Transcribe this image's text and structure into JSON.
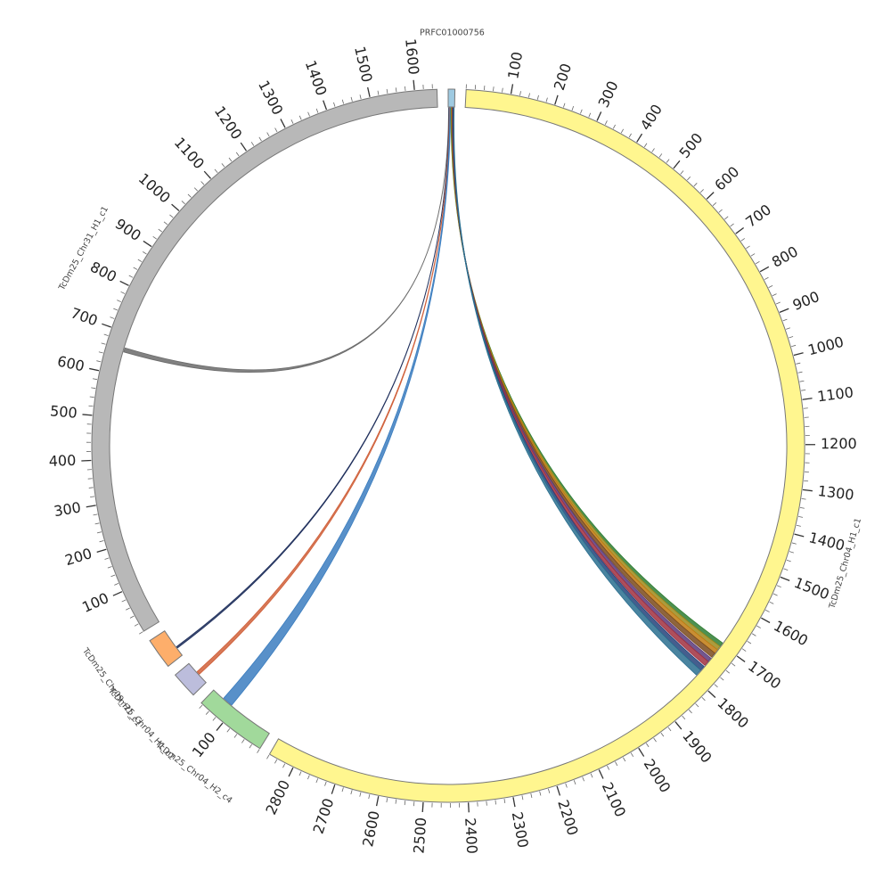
{
  "chart_data": {
    "type": "chord",
    "segments": [
      {
        "name": "PRFC01000756",
        "length": 15,
        "color": "#9ecae1",
        "ticks": [],
        "minor_tick_step": 20,
        "links": [
          {
            "target": 5,
            "source_range": [
              1,
              1.6
            ],
            "target_range": [
              655,
              665
            ],
            "color": "#6b6b6b"
          },
          {
            "target": 4,
            "source_range": [
              2,
              2.4
            ],
            "target_range": [
              20,
              24
            ],
            "color": "#1f2f5c"
          },
          {
            "target": 3,
            "source_range": [
              3,
              3.8
            ],
            "target_range": [
              25,
              33
            ],
            "color": "#d0603a"
          },
          {
            "target": 2,
            "source_range": [
              4,
              5.8
            ],
            "target_range": [
              110,
              135
            ],
            "color": "#3b7dbf"
          },
          {
            "target": 1,
            "source_range": [
              6.5,
              7.4
            ],
            "target_range": [
              1695,
              1705
            ],
            "color": "#2e7d32"
          },
          {
            "target": 1,
            "source_range": [
              7.4,
              8.3
            ],
            "target_range": [
              1705,
              1715
            ],
            "color": "#9c8a1c"
          },
          {
            "target": 1,
            "source_range": [
              8.3,
              9.2
            ],
            "target_range": [
              1715,
              1725
            ],
            "color": "#c07a10"
          },
          {
            "target": 1,
            "source_range": [
              9.2,
              10.1
            ],
            "target_range": [
              1725,
              1737
            ],
            "color": "#7a4a1c"
          },
          {
            "target": 1,
            "source_range": [
              10.1,
              11
            ],
            "target_range": [
              1740,
              1750
            ],
            "color": "#5a3a7a"
          },
          {
            "target": 1,
            "source_range": [
              11,
              11.9
            ],
            "target_range": [
              1750,
              1762
            ],
            "color": "#a03040"
          },
          {
            "target": 1,
            "source_range": [
              11.9,
              12.8
            ],
            "target_range": [
              1765,
              1777
            ],
            "color": "#24427a"
          },
          {
            "target": 1,
            "source_range": [
              12.8,
              14
            ],
            "target_range": [
              1777,
              1792
            ],
            "color": "#2a6f8f"
          }
        ]
      },
      {
        "name": "TcDm25_Chr04_H1_c1",
        "length": 2860,
        "color": "#fff68f",
        "minor_tick_step": 20,
        "ticks": [
          100,
          200,
          300,
          400,
          500,
          600,
          700,
          800,
          900,
          1000,
          1100,
          1200,
          1300,
          1400,
          1500,
          1600,
          1700,
          1800,
          1900,
          2000,
          2100,
          2200,
          2300,
          2400,
          2500,
          2600,
          2700,
          2800
        ]
      },
      {
        "name": "TcDm25_Chr04_H2_c4",
        "length": 165,
        "color": "#a1d99b",
        "minor_tick_step": 20,
        "ticks": [
          100
        ]
      },
      {
        "name": "TcDm25_Chr04_H1_c2",
        "length": 60,
        "color": "#bcbddc",
        "minor_tick_step": 20,
        "ticks": []
      },
      {
        "name": "TcDm25_Chr09_H1_c1",
        "length": 70,
        "color": "#fdae6b",
        "minor_tick_step": 20,
        "ticks": []
      },
      {
        "name": "TcDm25_Chr31_H1_c1",
        "length": 1650,
        "color": "#b8b8b8",
        "minor_tick_step": 20,
        "ticks": [
          100,
          200,
          300,
          400,
          500,
          600,
          700,
          800,
          900,
          1000,
          1100,
          1200,
          1300,
          1400,
          1500,
          1600
        ]
      }
    ]
  }
}
